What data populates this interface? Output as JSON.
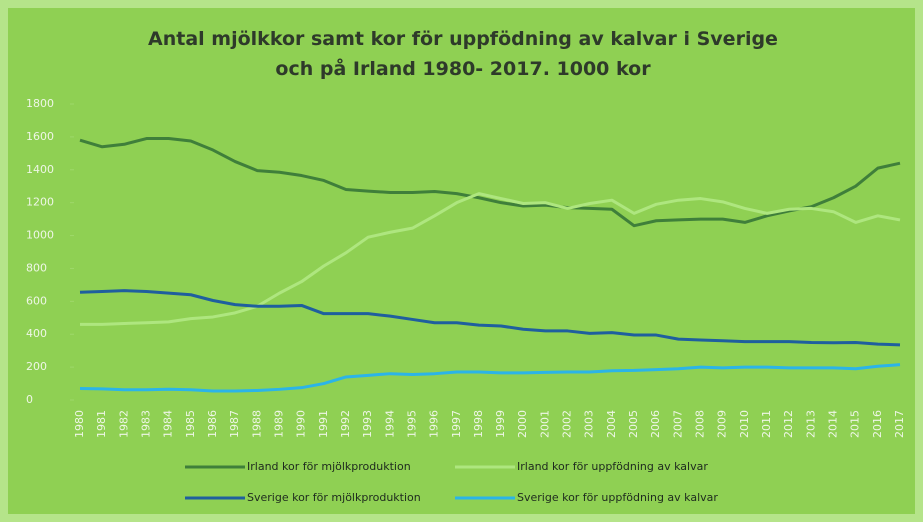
{
  "chart_data": {
    "type": "line",
    "title": "Antal mjölkkor samt kor för uppfödning av kalvar i Sverige och på Irland 1980- 2017. 1000 kor",
    "categories": [
      "1980",
      "1981",
      "1982",
      "1983",
      "1984",
      "1985",
      "1986",
      "1987",
      "1988",
      "1989",
      "1990",
      "1991",
      "1992",
      "1993",
      "1994",
      "1995",
      "1996",
      "1997",
      "1998",
      "1999",
      "2000",
      "2001",
      "2002",
      "2003",
      "2004",
      "2005",
      "2006",
      "2007",
      "2008",
      "2009",
      "2010",
      "2011",
      "2012",
      "2013",
      "2014",
      "2015",
      "2016",
      "2017"
    ],
    "series": [
      {
        "name": "Irland kor för mjölkproduktion",
        "color": "#3f7f3a",
        "values": [
          1580,
          1540,
          1555,
          1590,
          1590,
          1575,
          1520,
          1450,
          1395,
          1385,
          1365,
          1335,
          1280,
          1270,
          1262,
          1262,
          1268,
          1255,
          1230,
          1200,
          1180,
          1185,
          1170,
          1165,
          1160,
          1060,
          1090,
          1095,
          1100,
          1100,
          1080,
          1120,
          1150,
          1175,
          1230,
          1300,
          1410,
          1440
        ]
      },
      {
        "name": "Irland kor för uppfödning av kalvar",
        "color": "#aee67f",
        "values": [
          460,
          460,
          465,
          470,
          475,
          495,
          505,
          530,
          570,
          650,
          720,
          815,
          895,
          990,
          1020,
          1045,
          1120,
          1200,
          1255,
          1225,
          1195,
          1200,
          1165,
          1195,
          1215,
          1135,
          1190,
          1215,
          1225,
          1205,
          1165,
          1135,
          1160,
          1165,
          1145,
          1080,
          1120,
          1095
        ]
      },
      {
        "name": "Sverige kor för mjölkproduktion",
        "color": "#1f5f9e",
        "values": [
          655,
          660,
          665,
          660,
          650,
          640,
          605,
          580,
          570,
          570,
          575,
          525,
          525,
          525,
          510,
          490,
          470,
          470,
          455,
          450,
          430,
          420,
          420,
          405,
          410,
          395,
          395,
          370,
          365,
          360,
          355,
          355,
          355,
          350,
          348,
          350,
          340,
          335
        ]
      },
      {
        "name": "Sverige kor för uppfödning av kalvar",
        "color": "#2bb4e8",
        "values": [
          70,
          68,
          62,
          62,
          65,
          62,
          55,
          55,
          58,
          65,
          75,
          100,
          140,
          150,
          160,
          155,
          160,
          170,
          170,
          165,
          165,
          168,
          170,
          170,
          178,
          180,
          185,
          190,
          200,
          195,
          200,
          200,
          195,
          195,
          195,
          190,
          205,
          215
        ]
      }
    ],
    "ylim": [
      0,
      1800
    ],
    "yticks": [
      0,
      200,
      400,
      600,
      800,
      1000,
      1200,
      1400,
      1600,
      1800
    ]
  }
}
